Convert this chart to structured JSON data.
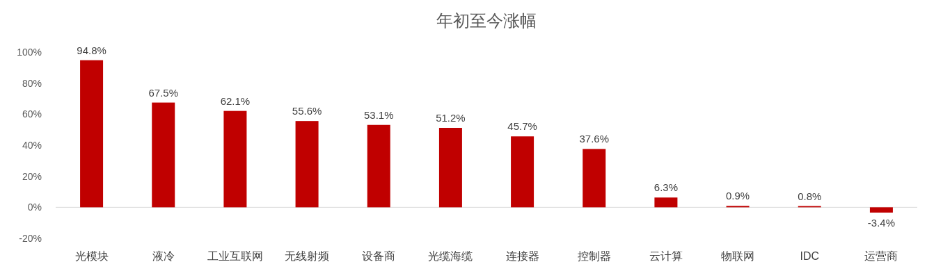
{
  "chart_data": {
    "type": "bar",
    "title": "年初至今涨幅",
    "categories": [
      "光模块",
      "液冷",
      "工业互联网",
      "无线射频",
      "设备商",
      "光缆海缆",
      "连接器",
      "控制器",
      "云计算",
      "物联网",
      "IDC",
      "运营商"
    ],
    "values": [
      94.8,
      67.5,
      62.1,
      55.6,
      53.1,
      51.2,
      45.7,
      37.6,
      6.3,
      0.9,
      0.8,
      -3.4
    ],
    "value_labels": [
      "94.8%",
      "67.5%",
      "62.1%",
      "55.6%",
      "53.1%",
      "51.2%",
      "45.7%",
      "37.6%",
      "6.3%",
      "0.9%",
      "0.8%",
      "-3.4%"
    ],
    "color": "#c00000",
    "ylim": [
      -20,
      100
    ],
    "yticks": [
      {
        "value": -20,
        "label": "-20%"
      },
      {
        "value": 0,
        "label": "0%"
      },
      {
        "value": 20,
        "label": "20%"
      },
      {
        "value": 40,
        "label": "40%"
      },
      {
        "value": 60,
        "label": "60%"
      },
      {
        "value": 80,
        "label": "80%"
      },
      {
        "value": 100,
        "label": "100%"
      }
    ]
  }
}
